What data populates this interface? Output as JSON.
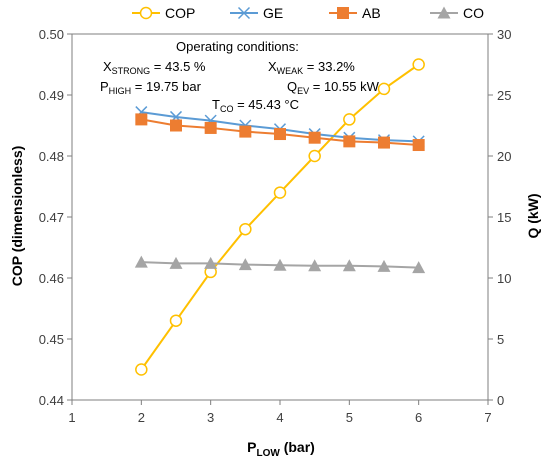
{
  "chart_data": {
    "type": "line",
    "x": [
      2,
      2.5,
      3,
      3.5,
      4,
      4.5,
      5,
      5.5,
      6
    ],
    "xlim": [
      1,
      7
    ],
    "xticks": [
      "1",
      "2",
      "3",
      "4",
      "5",
      "6",
      "7"
    ],
    "ylim": [
      0.44,
      0.5
    ],
    "yticks": [
      "0.44",
      "0.45",
      "0.46",
      "0.47",
      "0.48",
      "0.49",
      "0.50"
    ],
    "y2lim": [
      0,
      30
    ],
    "y2ticks": [
      "0",
      "5",
      "10",
      "15",
      "20",
      "25",
      "30"
    ],
    "xlabel": {
      "main": "P",
      "sub": "LOW",
      "unit": " (bar)"
    },
    "ylabel": "COP (dimensionless)",
    "y2label": "Q (kW)",
    "grid": false,
    "legend_position": "top",
    "series": [
      {
        "name": "COP",
        "axis": "left",
        "marker": "circle",
        "color": "#FFC000",
        "values": [
          0.445,
          0.453,
          0.461,
          0.468,
          0.474,
          0.48,
          0.486,
          0.491,
          0.495
        ]
      },
      {
        "name": "GE",
        "axis": "right",
        "marker": "x",
        "color": "#5B9BD5",
        "values": [
          23.6,
          23.2,
          22.9,
          22.5,
          22.2,
          21.8,
          21.5,
          21.3,
          21.2
        ]
      },
      {
        "name": "AB",
        "axis": "right",
        "marker": "square",
        "color": "#ED7D31",
        "values": [
          23.0,
          22.5,
          22.3,
          22.0,
          21.8,
          21.5,
          21.2,
          21.1,
          20.9
        ]
      },
      {
        "name": "CO",
        "axis": "right",
        "marker": "triangle",
        "color": "#A5A5A5",
        "values": [
          11.3,
          11.2,
          11.2,
          11.1,
          11.05,
          11.0,
          11.0,
          10.95,
          10.85
        ]
      }
    ],
    "annotations": {
      "heading": "Operating conditions:",
      "x_strong": {
        "main": "X",
        "sub": "STRONG",
        "value": " = 43.5 %"
      },
      "x_weak": {
        "main": "X",
        "sub": "WEAK",
        "value": " = 33.2%"
      },
      "p_high": {
        "main": "P",
        "sub": "HIGH",
        "value": " = 19.75 bar"
      },
      "q_ev": {
        "main": "Q",
        "sub": "EV",
        "value": " = 10.55 kW"
      },
      "t_co": {
        "main": "T",
        "sub": "CO",
        "value": " = 45.43 °C"
      }
    }
  }
}
